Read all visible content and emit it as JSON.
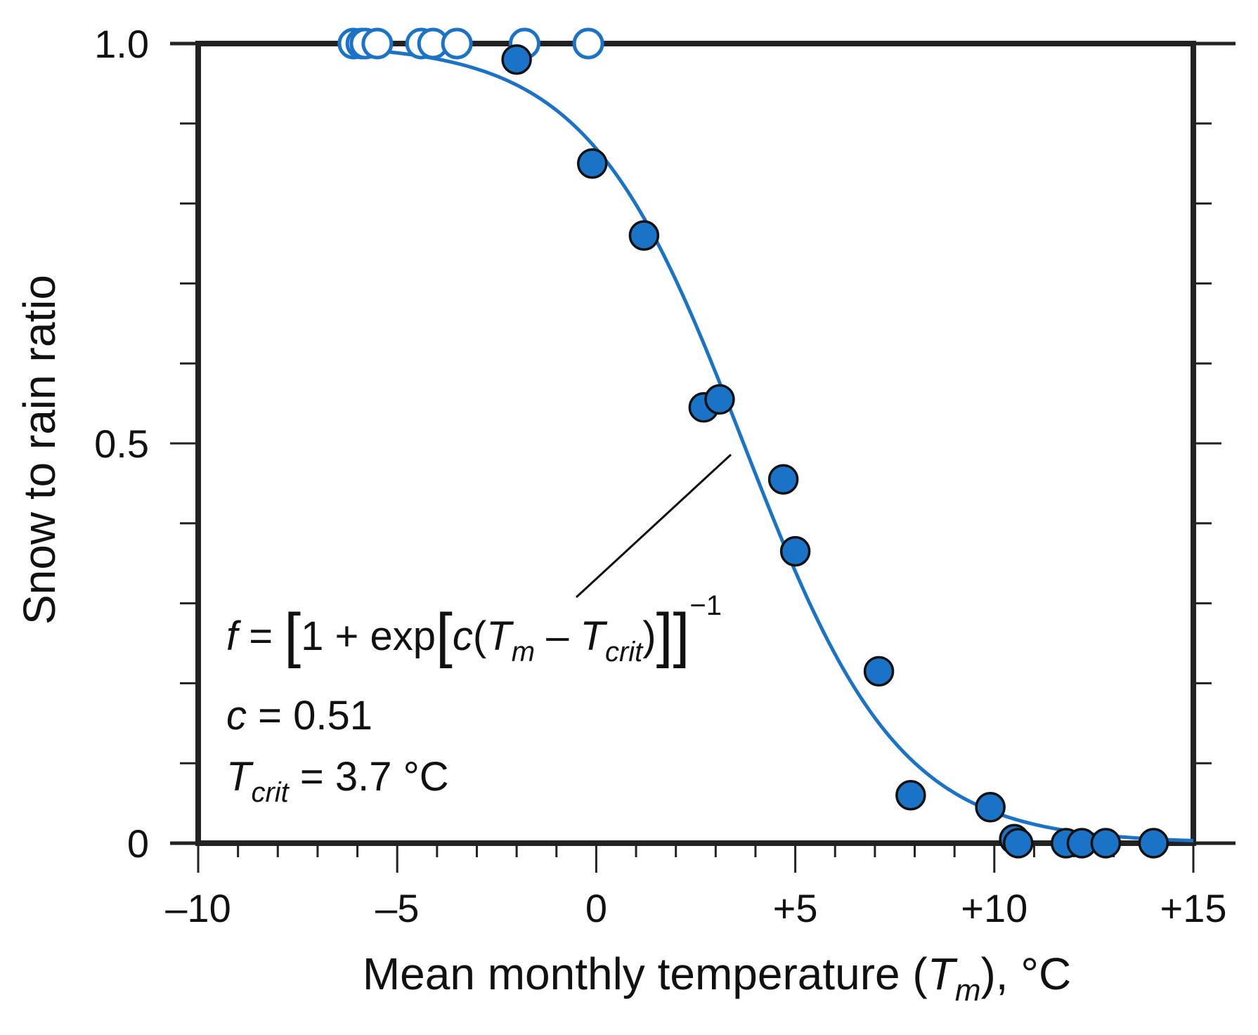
{
  "chart_data": {
    "type": "scatter",
    "xlabel": "Mean monthly temperature (",
    "xlabel_var": "T",
    "xlabel_sub": "m",
    "xlabel_suffix": "), °C",
    "ylabel": "Snow to rain ratio",
    "xlim": [
      -10,
      15
    ],
    "ylim": [
      0,
      1
    ],
    "x_ticks": [
      {
        "value": -10,
        "label": "–10"
      },
      {
        "value": -5,
        "label": "–5"
      },
      {
        "value": 0,
        "label": "0"
      },
      {
        "value": 5,
        "label": "+5"
      },
      {
        "value": 10,
        "label": "+10"
      },
      {
        "value": 15,
        "label": "+15"
      }
    ],
    "y_ticks": [
      {
        "value": 0,
        "label": "0"
      },
      {
        "value": 0.5,
        "label": "0.5"
      },
      {
        "value": 1.0,
        "label": "1.0"
      }
    ],
    "x_minor_step": 1,
    "y_minor_step": 0.1,
    "grid": false,
    "colors": {
      "series": "#1a73c7",
      "axes": "#222222",
      "marker_edge": "#111111"
    },
    "series": [
      {
        "name": "open",
        "marker": "open-circle",
        "points": [
          {
            "x": -6.1,
            "y": 1.0
          },
          {
            "x": -5.9,
            "y": 1.0
          },
          {
            "x": -5.8,
            "y": 1.0
          },
          {
            "x": -5.5,
            "y": 1.0
          },
          {
            "x": -4.4,
            "y": 1.0
          },
          {
            "x": -4.1,
            "y": 1.0
          },
          {
            "x": -3.5,
            "y": 1.0
          },
          {
            "x": -1.8,
            "y": 1.0
          },
          {
            "x": -0.2,
            "y": 1.0
          }
        ]
      },
      {
        "name": "filled",
        "marker": "filled-circle",
        "points": [
          {
            "x": -2.0,
            "y": 0.98
          },
          {
            "x": -0.1,
            "y": 0.85
          },
          {
            "x": 1.2,
            "y": 0.76
          },
          {
            "x": 2.7,
            "y": 0.545
          },
          {
            "x": 3.1,
            "y": 0.555
          },
          {
            "x": 4.7,
            "y": 0.455
          },
          {
            "x": 5.0,
            "y": 0.365
          },
          {
            "x": 7.1,
            "y": 0.215
          },
          {
            "x": 7.9,
            "y": 0.06
          },
          {
            "x": 9.9,
            "y": 0.045
          },
          {
            "x": 10.5,
            "y": 0.005
          },
          {
            "x": 10.6,
            "y": 0.0
          },
          {
            "x": 11.8,
            "y": 0.0
          },
          {
            "x": 12.2,
            "y": 0.0
          },
          {
            "x": 12.8,
            "y": 0.0
          },
          {
            "x": 14.0,
            "y": 0.0
          }
        ]
      }
    ],
    "fit": {
      "c": 0.51,
      "Tcrit": 3.7,
      "x_range": [
        -6.0,
        15.0
      ]
    },
    "annotation": {
      "f": "f",
      "eq_sign": " = ",
      "bracket_open": "[",
      "one_plus": "1 + exp",
      "inner_open": "[",
      "c_var": "c",
      "paren_open": "(",
      "T": "T",
      "m_sub": "m",
      "minus": " – ",
      "crit_sub": "crit",
      "paren_close": ")",
      "brackets_close": "]]",
      "exponent": "−1",
      "c_line_var": "c",
      "c_line_value": " = 0.51",
      "t_line_var": "T",
      "t_line_sub": "crit",
      "t_line_value": " = 3.7 °C"
    }
  }
}
